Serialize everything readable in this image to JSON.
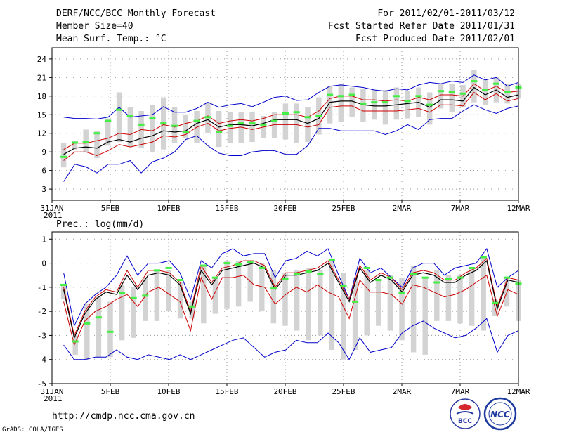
{
  "header": {
    "title": "DERF/NCC/BCC Monthly Forecast",
    "member_size": "Member Size=40",
    "variable1": "Mean Surf. Temp.: °C",
    "period": "For 2011/02/01-2011/03/12",
    "started": "Fcst Started Refer Date 2011/01/31",
    "produced": "Fcst Produced Date 2011/02/01"
  },
  "footer": {
    "url": "http://cmdp.ncc.cma.gov.cn",
    "grads": "GrADS: COLA/IGES",
    "logo_bcc": "BCC",
    "logo_ncc": "NCC"
  },
  "colors": {
    "max_min": "#0000cc",
    "spread": "#cc0000",
    "mean": "#000000",
    "box": "#d3d3d3",
    "median": "#44ee44",
    "grid": "#999999"
  },
  "x_ticks": [
    {
      "day": 0,
      "label": "31JAN",
      "sub": "2011"
    },
    {
      "day": 5,
      "label": "5FEB"
    },
    {
      "day": 10,
      "label": "10FEB"
    },
    {
      "day": 15,
      "label": "15FEB"
    },
    {
      "day": 20,
      "label": "20FEB"
    },
    {
      "day": 25,
      "label": "25FEB"
    },
    {
      "day": 30,
      "label": "2MAR"
    },
    {
      "day": 35,
      "label": "7MAR"
    },
    {
      "day": 40,
      "label": "12MAR"
    }
  ],
  "chart_data": [
    {
      "type": "line",
      "title": "Mean Surf. Temp.: °C",
      "x_start_day": 1,
      "xlim": [
        0,
        40
      ],
      "ylim": [
        1.2,
        25.8
      ],
      "yticks": [
        3,
        6,
        9,
        12,
        15,
        18,
        21,
        24
      ],
      "series": [
        {
          "name": "max",
          "values": [
            14.6,
            14.4,
            14.4,
            14.3,
            14.6,
            16.2,
            14.6,
            14.8,
            15.0,
            16.3,
            15.4,
            15.4,
            16.0,
            17.0,
            16.2,
            16.6,
            16.8,
            16.3,
            17.0,
            17.8,
            18.0,
            17.3,
            17.4,
            18.6,
            19.6,
            19.8,
            19.6,
            19.4,
            19.0,
            18.8,
            19.2,
            19.0,
            19.8,
            20.2,
            20.0,
            20.4,
            20.2,
            21.4,
            20.6,
            21.0,
            19.6,
            20.2
          ]
        },
        {
          "name": "upper",
          "values": [
            9.4,
            10.4,
            10.4,
            10.8,
            11.2,
            12.0,
            11.8,
            12.6,
            12.4,
            13.4,
            13.0,
            13.6,
            14.0,
            14.8,
            13.6,
            14.0,
            14.2,
            14.0,
            14.4,
            15.0,
            15.0,
            15.0,
            14.6,
            15.6,
            17.6,
            18.0,
            18.0,
            17.4,
            17.4,
            17.2,
            17.4,
            17.2,
            17.8,
            17.4,
            18.2,
            18.2,
            18.0,
            20.0,
            18.8,
            19.6,
            18.6,
            18.8
          ]
        },
        {
          "name": "mean",
          "values": [
            8.6,
            9.6,
            9.8,
            9.6,
            10.6,
            11.0,
            10.6,
            11.2,
            11.6,
            12.4,
            12.2,
            12.4,
            13.6,
            14.2,
            13.0,
            13.4,
            13.4,
            13.2,
            13.6,
            14.2,
            14.2,
            14.2,
            13.6,
            14.4,
            17.0,
            17.2,
            17.2,
            16.6,
            16.4,
            16.4,
            16.6,
            16.8,
            17.0,
            16.2,
            17.4,
            17.4,
            17.2,
            19.4,
            18.2,
            19.0,
            17.8,
            18.2
          ]
        },
        {
          "name": "lower",
          "values": [
            7.6,
            9.0,
            9.0,
            8.4,
            9.2,
            10.2,
            9.8,
            10.2,
            10.6,
            11.6,
            11.4,
            11.8,
            13.0,
            13.6,
            12.4,
            12.8,
            13.0,
            12.6,
            13.0,
            13.4,
            13.4,
            13.4,
            13.0,
            13.4,
            16.2,
            16.4,
            16.4,
            15.6,
            15.6,
            15.6,
            15.6,
            15.8,
            16.0,
            15.4,
            16.6,
            16.6,
            16.4,
            18.6,
            17.4,
            18.4,
            17.2,
            17.6
          ]
        },
        {
          "name": "min",
          "values": [
            4.2,
            7.0,
            6.6,
            5.6,
            7.0,
            7.0,
            7.6,
            5.6,
            7.4,
            8.0,
            9.0,
            11.0,
            11.6,
            10.0,
            8.8,
            8.4,
            8.4,
            9.0,
            9.2,
            9.2,
            8.6,
            8.6,
            10.0,
            12.8,
            12.8,
            12.4,
            12.4,
            12.4,
            12.4,
            11.8,
            12.4,
            13.4,
            12.6,
            14.2,
            14.4,
            14.4,
            15.6,
            16.6,
            15.8,
            15.2,
            16.0,
            16.4
          ]
        }
      ],
      "boxes": [
        {
          "low": 6.5,
          "high": 10.4,
          "median": 8.2
        },
        {
          "low": 9.4,
          "high": 10.8,
          "median": 10.5
        },
        {
          "low": 9.0,
          "high": 12.6,
          "median": 10.6
        },
        {
          "low": 8.0,
          "high": 12.4,
          "median": 12.0
        },
        {
          "low": 10.0,
          "high": 14.4,
          "median": 14.0
        },
        {
          "low": 10.6,
          "high": 18.6,
          "median": 15.8
        },
        {
          "low": 9.8,
          "high": 16.2,
          "median": 14.8
        },
        {
          "low": 9.6,
          "high": 15.6,
          "median": 13.4
        },
        {
          "low": 9.0,
          "high": 16.6,
          "median": 14.4
        },
        {
          "low": 9.4,
          "high": 17.8,
          "median": 13.6
        },
        {
          "low": 10.4,
          "high": 16.2,
          "median": 13.2
        },
        {
          "low": 11.2,
          "high": 15.0,
          "median": 12.2
        },
        {
          "low": 10.4,
          "high": 15.6,
          "median": 14.0
        },
        {
          "low": 12.0,
          "high": 17.0,
          "median": 14.6
        },
        {
          "low": 9.8,
          "high": 15.6,
          "median": 12.2
        },
        {
          "low": 10.4,
          "high": 15.4,
          "median": 13.2
        },
        {
          "low": 10.4,
          "high": 15.4,
          "median": 13.6
        },
        {
          "low": 10.6,
          "high": 15.4,
          "median": 13.6
        },
        {
          "low": 11.2,
          "high": 14.8,
          "median": 13.4
        },
        {
          "low": 11.2,
          "high": 15.4,
          "median": 14.0
        },
        {
          "low": 11.0,
          "high": 16.8,
          "median": 15.2
        },
        {
          "low": 10.4,
          "high": 16.8,
          "median": 15.4
        },
        {
          "low": 10.6,
          "high": 16.2,
          "median": 14.6
        },
        {
          "low": 11.8,
          "high": 17.8,
          "median": 14.8
        },
        {
          "low": 13.6,
          "high": 19.6,
          "median": 18.2
        },
        {
          "low": 13.8,
          "high": 20.0,
          "median": 18.0
        },
        {
          "low": 14.6,
          "high": 19.4,
          "median": 18.2
        },
        {
          "low": 13.8,
          "high": 19.2,
          "median": 16.8
        },
        {
          "low": 14.2,
          "high": 19.0,
          "median": 17.0
        },
        {
          "low": 13.4,
          "high": 19.0,
          "median": 17.0
        },
        {
          "low": 14.2,
          "high": 19.4,
          "median": 18.0
        },
        {
          "low": 14.4,
          "high": 18.8,
          "median": 17.2
        },
        {
          "low": 14.6,
          "high": 19.4,
          "median": 18.0
        },
        {
          "low": 13.4,
          "high": 18.6,
          "median": 16.6
        },
        {
          "low": 16.0,
          "high": 20.0,
          "median": 18.8
        },
        {
          "low": 15.4,
          "high": 20.0,
          "median": 18.6
        },
        {
          "low": 16.2,
          "high": 19.8,
          "median": 18.4
        },
        {
          "low": 17.0,
          "high": 22.2,
          "median": 20.4
        },
        {
          "low": 16.6,
          "high": 20.6,
          "median": 19.0
        },
        {
          "low": 17.0,
          "high": 21.0,
          "median": 20.0
        },
        {
          "low": 16.8,
          "high": 20.0,
          "median": 18.6
        },
        {
          "low": 17.6,
          "high": 20.0,
          "median": 19.4
        }
      ]
    },
    {
      "type": "line",
      "title": "Prec.: log(mm/d)",
      "x_start_day": 1,
      "xlim": [
        0,
        40
      ],
      "ylim": [
        -5,
        1.3
      ],
      "yticks": [
        -5,
        -4,
        -3,
        -2,
        -1,
        0,
        1
      ],
      "series": [
        {
          "name": "max",
          "values": [
            -0.4,
            -2.6,
            -1.7,
            -1.3,
            -1.0,
            -0.5,
            0.3,
            -0.5,
            0.0,
            0.0,
            0.1,
            -0.4,
            -1.5,
            0.1,
            -0.2,
            0.4,
            0.6,
            0.3,
            0.4,
            0.4,
            -0.6,
            0.1,
            0.2,
            0.5,
            0.3,
            0.6,
            -0.5,
            -1.5,
            0.2,
            -0.4,
            -0.2,
            -0.6,
            -1.0,
            -0.2,
            0.0,
            0.0,
            -0.5,
            -0.2,
            -0.1,
            0.0,
            0.6,
            -1.0,
            -0.6,
            -0.3
          ]
        },
        {
          "name": "upper",
          "values": [
            -1.0,
            -3.0,
            -2.0,
            -1.4,
            -1.1,
            -1.2,
            -0.3,
            -1.0,
            -0.3,
            -0.3,
            -0.4,
            -0.8,
            -2.0,
            -0.1,
            -0.8,
            -0.2,
            -0.1,
            0.1,
            0.1,
            -0.1,
            -1.0,
            -0.4,
            -0.4,
            -0.3,
            -0.2,
            0.1,
            -0.7,
            -1.5,
            -0.1,
            -0.7,
            -0.4,
            -0.6,
            -1.1,
            -0.4,
            -0.3,
            -0.4,
            -0.7,
            -0.7,
            -0.4,
            -0.2,
            0.2,
            -1.8,
            -0.6,
            -0.7
          ]
        },
        {
          "name": "mean",
          "values": [
            -1.1,
            -3.1,
            -2.1,
            -1.5,
            -1.2,
            -1.3,
            -0.5,
            -1.1,
            -0.5,
            -0.4,
            -0.5,
            -0.9,
            -2.1,
            -0.3,
            -0.9,
            -0.3,
            -0.2,
            -0.1,
            0.0,
            -0.2,
            -1.1,
            -0.5,
            -0.5,
            -0.4,
            -0.3,
            0.0,
            -0.8,
            -1.6,
            -0.2,
            -0.8,
            -0.5,
            -0.7,
            -1.2,
            -0.5,
            -0.4,
            -0.5,
            -0.8,
            -0.8,
            -0.5,
            -0.3,
            0.1,
            -1.9,
            -0.7,
            -0.8
          ]
        },
        {
          "name": "lower",
          "values": [
            -1.6,
            -3.4,
            -2.4,
            -2.0,
            -1.8,
            -1.5,
            -1.3,
            -1.8,
            -1.2,
            -1.0,
            -1.3,
            -1.6,
            -2.8,
            -0.6,
            -1.5,
            -0.6,
            -0.6,
            -0.5,
            -0.9,
            -1.0,
            -1.7,
            -1.3,
            -1.0,
            -1.2,
            -0.9,
            -1.2,
            -1.4,
            -2.3,
            -0.7,
            -1.2,
            -1.2,
            -1.3,
            -1.7,
            -0.9,
            -1.0,
            -1.2,
            -1.4,
            -1.3,
            -1.1,
            -0.8,
            -0.5,
            -2.2,
            -1.1,
            -1.3
          ]
        },
        {
          "name": "min",
          "values": [
            -3.4,
            -4.0,
            -4.0,
            -3.9,
            -3.9,
            -3.6,
            -3.9,
            -4.0,
            -3.8,
            -3.9,
            -4.0,
            -3.8,
            -4.0,
            -3.8,
            -3.6,
            -3.4,
            -3.2,
            -3.1,
            -3.5,
            -3.9,
            -3.7,
            -3.6,
            -3.2,
            -3.3,
            -3.3,
            -2.9,
            -3.3,
            -4.0,
            -3.1,
            -3.7,
            -3.6,
            -3.5,
            -2.9,
            -2.6,
            -2.4,
            -2.7,
            -2.9,
            -3.1,
            -3.0,
            -2.7,
            -2.3,
            -3.7,
            -3.0,
            -2.8
          ]
        },
        {
          "name": "boxes_placeholder",
          "values": []
        }
      ],
      "boxes": [
        {
          "low": -1.5,
          "high": -0.9,
          "median": -0.9
        },
        {
          "low": -3.8,
          "high": -3.0,
          "median": -3.25
        },
        {
          "low": -4.0,
          "high": -1.7,
          "median": -2.5
        },
        {
          "low": -3.9,
          "high": -1.4,
          "median": -2.25
        },
        {
          "low": -3.9,
          "high": -1.6,
          "median": -2.85
        },
        {
          "low": -3.2,
          "high": -0.9,
          "median": -1.25
        },
        {
          "low": -3.1,
          "high": -1.0,
          "median": -1.45
        },
        {
          "low": -2.4,
          "high": -0.6,
          "median": -1.35
        },
        {
          "low": -2.4,
          "high": -0.3,
          "median": -0.3
        },
        {
          "low": -2.0,
          "high": -0.3,
          "median": -0.2
        },
        {
          "low": -2.3,
          "high": -0.8,
          "median": -0.7
        },
        {
          "low": -2.3,
          "high": -1.6,
          "median": -1.8
        },
        {
          "low": -2.5,
          "high": -0.1,
          "median": -0.1
        },
        {
          "low": -2.1,
          "high": -0.6,
          "median": -0.6
        },
        {
          "low": -1.9,
          "high": 0.1,
          "median": 0.0
        },
        {
          "low": -1.8,
          "high": 0.1,
          "median": -0.05
        },
        {
          "low": -1.6,
          "high": 0.0,
          "median": 0.05
        },
        {
          "low": -2.0,
          "high": 0.0,
          "median": -0.2
        },
        {
          "low": -2.5,
          "high": -0.3,
          "median": -1.05
        },
        {
          "low": -2.6,
          "high": -0.4,
          "median": -0.65
        },
        {
          "low": -2.8,
          "high": -0.3,
          "median": -0.45
        },
        {
          "low": -3.2,
          "high": -0.2,
          "median": -0.35
        },
        {
          "low": -3.0,
          "high": -0.3,
          "median": -0.45
        },
        {
          "low": -3.6,
          "high": 0.1,
          "median": 0.15
        },
        {
          "low": -4.0,
          "high": -0.4,
          "median": -0.95
        },
        {
          "low": -3.6,
          "high": -0.6,
          "median": -1.6
        },
        {
          "low": -3.0,
          "high": -0.3,
          "median": -0.2
        },
        {
          "low": -2.6,
          "high": -0.7,
          "median": -0.7
        },
        {
          "low": -2.8,
          "high": -0.5,
          "median": -0.6
        },
        {
          "low": -3.2,
          "high": -0.6,
          "median": -1.25
        },
        {
          "low": -3.7,
          "high": -0.1,
          "median": -0.45
        },
        {
          "low": -3.8,
          "high": -0.6,
          "median": -0.6
        },
        {
          "low": -2.4,
          "high": -0.3,
          "median": -0.8
        },
        {
          "low": -2.4,
          "high": -0.5,
          "median": -0.65
        },
        {
          "low": -2.5,
          "high": -0.5,
          "median": -0.6
        },
        {
          "low": -2.6,
          "high": -0.2,
          "median": -0.2
        },
        {
          "low": -2.8,
          "high": 0.3,
          "median": 0.25
        },
        {
          "low": -2.2,
          "high": -1.5,
          "median": -1.65
        },
        {
          "low": -1.8,
          "high": -0.6,
          "median": -0.6
        },
        {
          "low": -2.4,
          "high": -0.7,
          "median": -0.85
        }
      ]
    }
  ]
}
